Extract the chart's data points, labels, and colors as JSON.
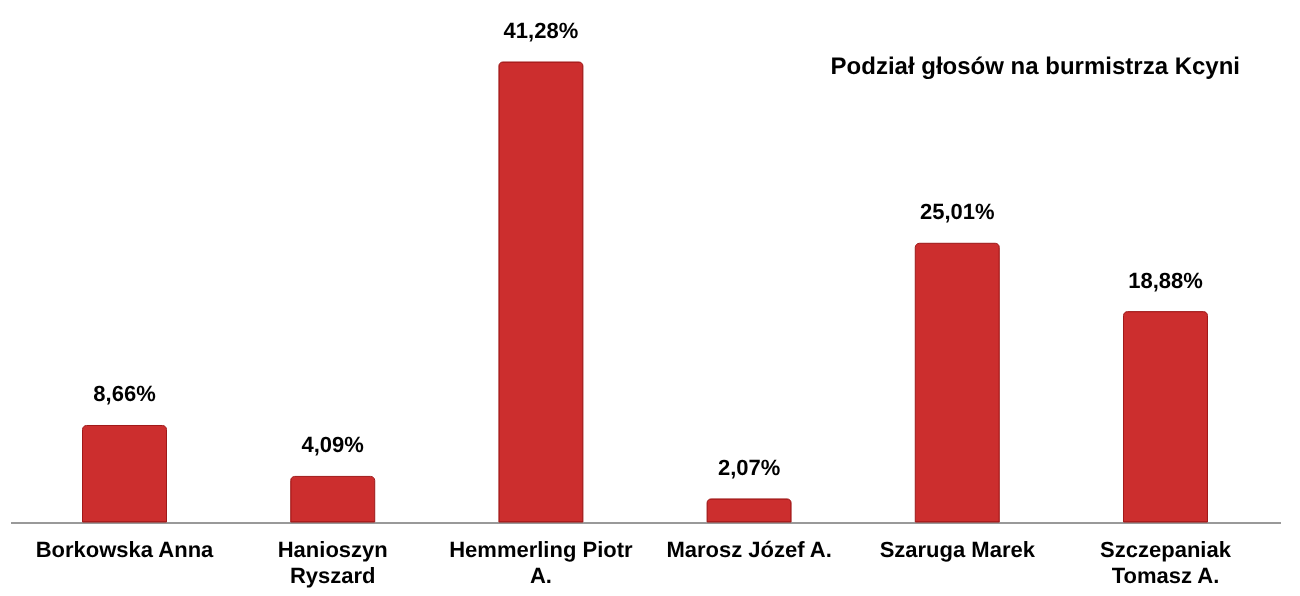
{
  "chart_data": {
    "type": "bar",
    "title": "Podział głosów na burmistrza Kcyni",
    "categories": [
      "Borkowska Anna",
      "Hanioszyn Ryszard",
      "Hemmerling Piotr A.",
      "Marosz Józef A.",
      "Szaruga Marek",
      "Szczepaniak Tomasz A."
    ],
    "values": [
      8.66,
      4.09,
      41.28,
      2.07,
      25.01,
      18.88
    ],
    "value_labels": [
      "8,66%",
      "4,09%",
      "41,28%",
      "2,07%",
      "25,01%",
      "18,88%"
    ],
    "color": "#cc2e2e"
  }
}
